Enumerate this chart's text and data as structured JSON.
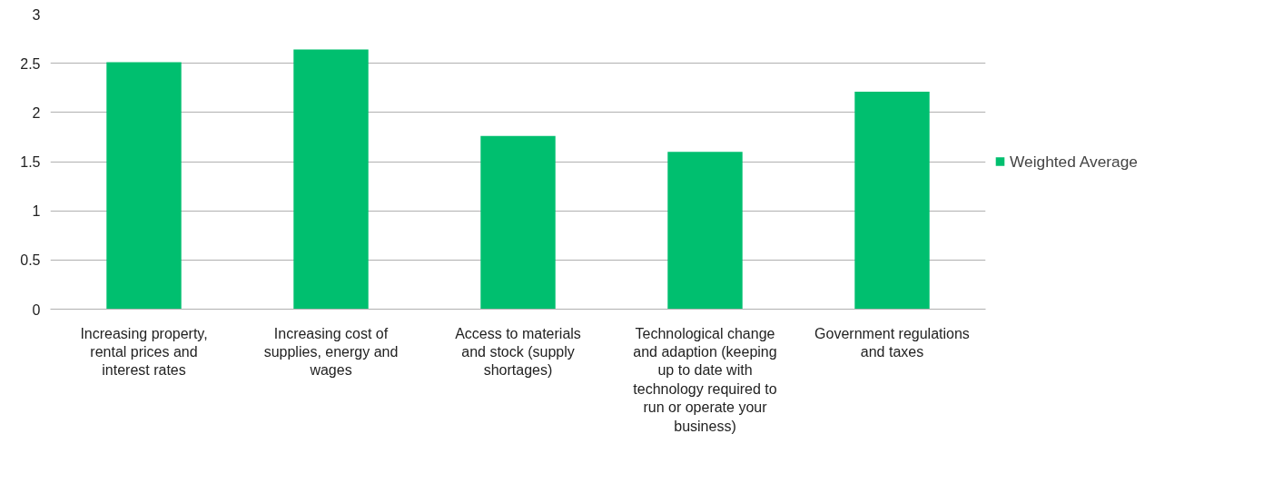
{
  "chart_data": {
    "type": "bar",
    "categories": [
      "Increasing property, rental prices and interest rates",
      "Increasing cost of supplies, energy and wages",
      "Access to materials and stock (supply shortages)",
      "Technological change and adaption (keeping up to date with technology required to run or operate your business)",
      "Government regulations and taxes"
    ],
    "series": [
      {
        "name": "Weighted Average",
        "color": "#00bf6f",
        "values": [
          2.51,
          2.64,
          1.76,
          1.6,
          2.21
        ]
      }
    ],
    "ylim": [
      0,
      3
    ],
    "yticks": [
      0,
      0.5,
      1,
      1.5,
      2,
      2.5,
      3
    ],
    "grid": "y",
    "legend": "right"
  }
}
